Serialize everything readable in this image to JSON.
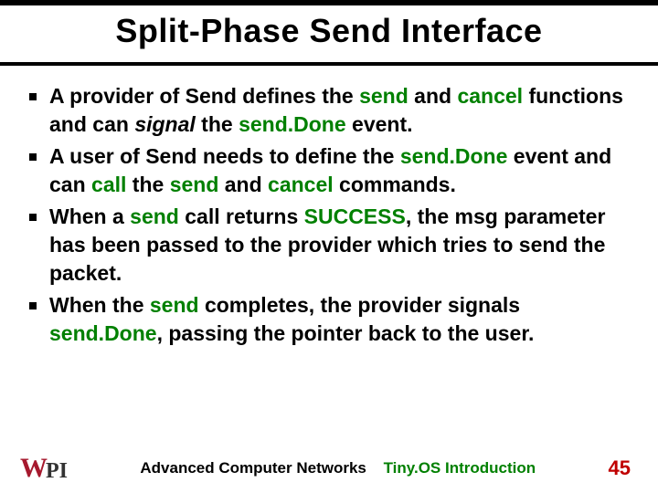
{
  "title": "Split-Phase Send Interface",
  "bullets": [
    {
      "pre": "A provider of Send defines the ",
      "kw1": "send",
      "mid1": " and ",
      "kw2": "cancel",
      "mid2": " functions and can ",
      "em": "signal",
      "mid3": " the ",
      "kw3": "send.Done",
      "post": " event."
    },
    {
      "pre": "A user of Send needs to define the ",
      "kw1": "send.Done",
      "mid1": " event and can ",
      "kw2": "call",
      "mid2": " the ",
      "kw3": "send",
      "mid3": " and ",
      "kw4": "cancel",
      "post": " commands."
    },
    {
      "pre": "When a ",
      "kw1": "send",
      "mid1": " call returns ",
      "kw2": "SUCCESS",
      "post": ", the msg parameter has been passed to the provider which tries to send the packet."
    },
    {
      "pre": "When the ",
      "kw1": "send",
      "mid1": " completes, the provider signals ",
      "kw2": "send.Done",
      "post": ", passing the pointer back to the user."
    }
  ],
  "footer": {
    "logo_w": "W",
    "logo_pi": "PI",
    "center1": "Advanced Computer Networks",
    "center2": "Tiny.OS Introduction",
    "page": "45"
  },
  "colors": {
    "keyword": "#008000",
    "pagenum": "#c00000",
    "logo_red": "#a6192e"
  }
}
